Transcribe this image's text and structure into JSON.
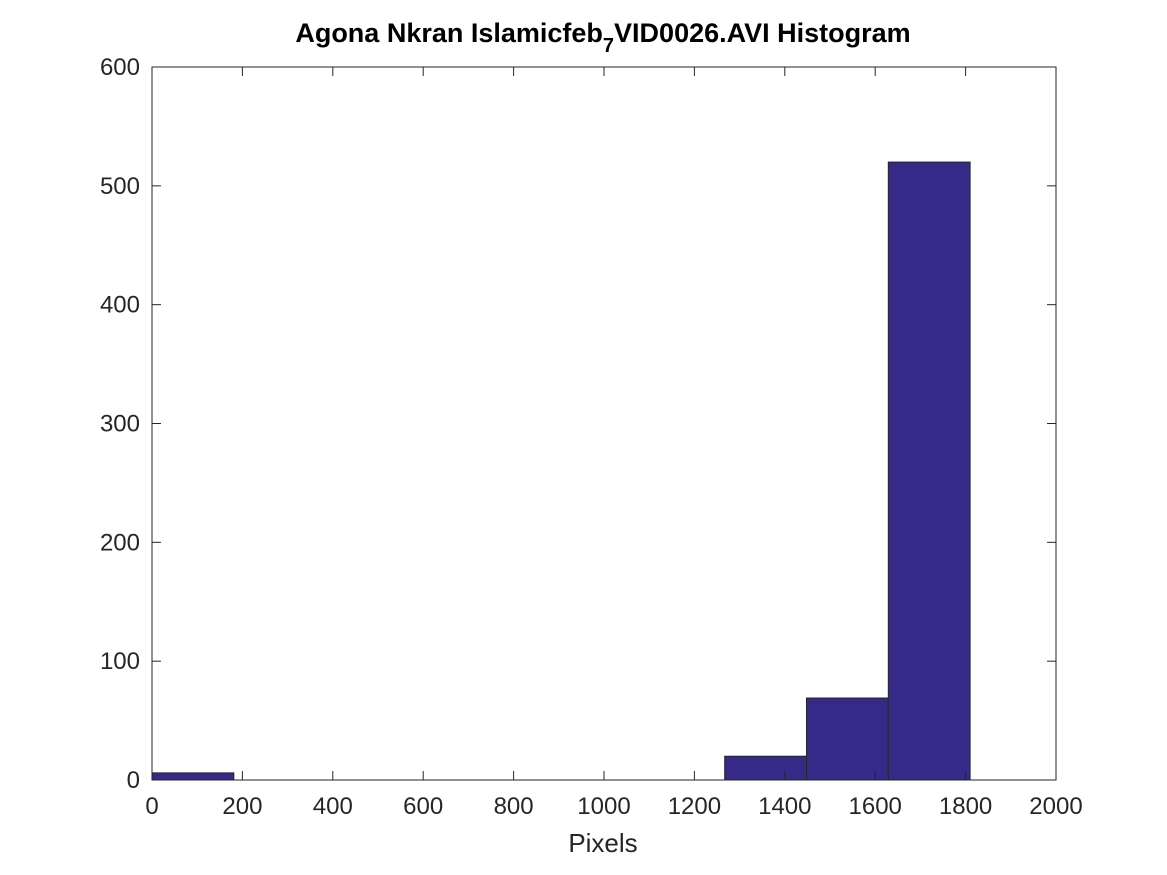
{
  "chart_data": {
    "type": "bar",
    "title": {
      "main": "Agona Nkran Islamicfeb",
      "subscript": "7",
      "rest": "VID0026.AVI Histogram"
    },
    "xlabel": "Pixels",
    "ylabel": "",
    "xlim": [
      0,
      2000
    ],
    "ylim": [
      0,
      600
    ],
    "xticks": [
      0,
      200,
      400,
      600,
      800,
      1000,
      1200,
      1400,
      1600,
      1800,
      2000
    ],
    "yticks": [
      0,
      100,
      200,
      300,
      400,
      500,
      600
    ],
    "bins": [
      {
        "x0": 0,
        "x1": 181,
        "count": 6
      },
      {
        "x0": 181,
        "x1": 362,
        "count": 0
      },
      {
        "x0": 362,
        "x1": 543,
        "count": 0
      },
      {
        "x0": 543,
        "x1": 724,
        "count": 0
      },
      {
        "x0": 724,
        "x1": 905,
        "count": 0
      },
      {
        "x0": 905,
        "x1": 1086,
        "count": 0
      },
      {
        "x0": 1086,
        "x1": 1267,
        "count": 0
      },
      {
        "x0": 1267,
        "x1": 1448,
        "count": 20
      },
      {
        "x0": 1448,
        "x1": 1629,
        "count": 69
      },
      {
        "x0": 1629,
        "x1": 1810,
        "count": 520
      }
    ],
    "bar_color": "#352a87",
    "edge_color": "#262626",
    "grid": false,
    "box": true
  }
}
